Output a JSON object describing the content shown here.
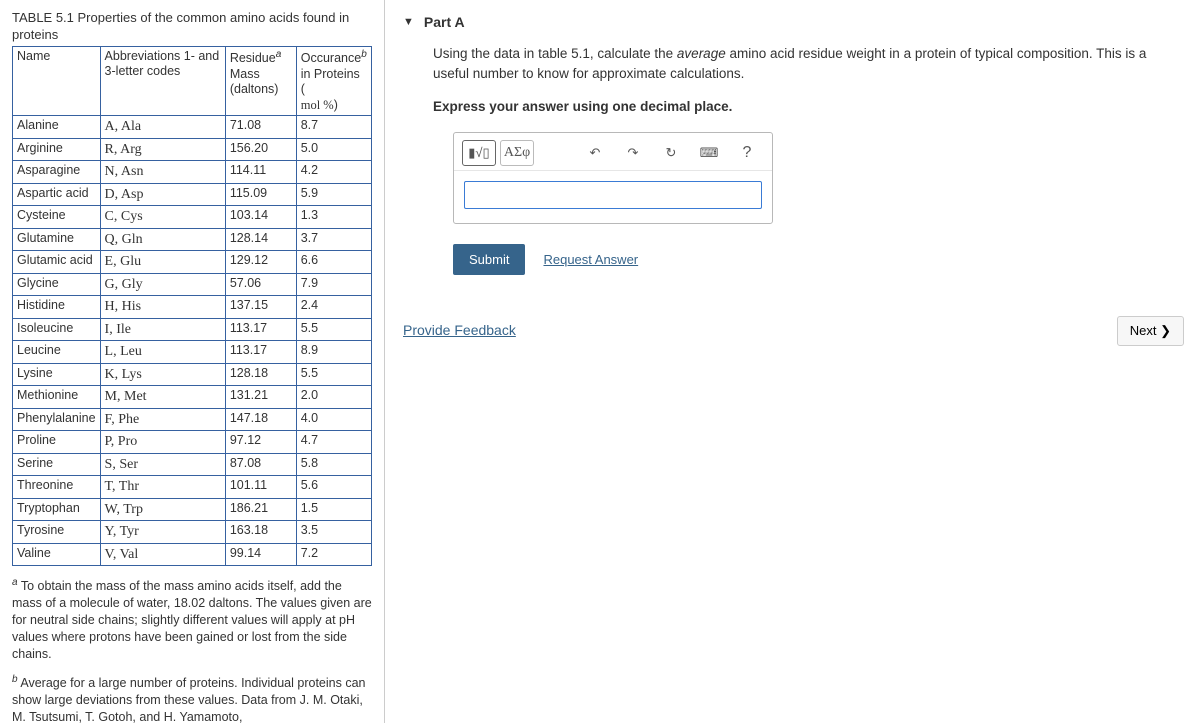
{
  "left": {
    "caption": "TABLE 5.1 Properties of the common amino acids found in proteins",
    "headers": {
      "c1": "Name",
      "c2": "Abbreviations 1- and 3-letter codes",
      "c3_l1": "Residue",
      "c3_sup": "a",
      "c3_l2": "Mass (daltons)",
      "c4_l1": "Occurance",
      "c4_sup": "b",
      "c4_l2": "in Proteins (",
      "c4_l3": "mol %",
      "c4_l4": ")"
    },
    "rows": [
      {
        "n": "Alanine",
        "a": "A,  Ala",
        "m": "71.08",
        "o": "8.7"
      },
      {
        "n": "Arginine",
        "a": "R,  Arg",
        "m": "156.20",
        "o": "5.0"
      },
      {
        "n": "Asparagine",
        "a": "N,  Asn",
        "m": "114.11",
        "o": "4.2"
      },
      {
        "n": "Aspartic acid",
        "a": "D,  Asp",
        "m": "115.09",
        "o": "5.9"
      },
      {
        "n": "Cysteine",
        "a": "C,  Cys",
        "m": "103.14",
        "o": "1.3"
      },
      {
        "n": "Glutamine",
        "a": "Q,  Gln",
        "m": "128.14",
        "o": "3.7"
      },
      {
        "n": "Glutamic acid",
        "a": "E,  Glu",
        "m": "129.12",
        "o": "6.6"
      },
      {
        "n": "Glycine",
        "a": "G,  Gly",
        "m": "57.06",
        "o": "7.9"
      },
      {
        "n": "Histidine",
        "a": "H,  His",
        "m": "137.15",
        "o": "2.4"
      },
      {
        "n": "Isoleucine",
        "a": "I,  Ile",
        "m": "113.17",
        "o": "5.5"
      },
      {
        "n": "Leucine",
        "a": "L,  Leu",
        "m": "113.17",
        "o": "8.9"
      },
      {
        "n": "Lysine",
        "a": "K,  Lys",
        "m": "128.18",
        "o": "5.5"
      },
      {
        "n": "Methionine",
        "a": "M,  Met",
        "m": "131.21",
        "o": "2.0"
      },
      {
        "n": "Phenylalanine",
        "a": "F,  Phe",
        "m": "147.18",
        "o": "4.0"
      },
      {
        "n": "Proline",
        "a": "P,  Pro",
        "m": "97.12",
        "o": "4.7"
      },
      {
        "n": "Serine",
        "a": "S,  Ser",
        "m": "87.08",
        "o": "5.8"
      },
      {
        "n": "Threonine",
        "a": "T,  Thr",
        "m": "101.11",
        "o": "5.6"
      },
      {
        "n": "Tryptophan",
        "a": "W,  Trp",
        "m": "186.21",
        "o": "1.5"
      },
      {
        "n": "Tyrosine",
        "a": "Y,  Tyr",
        "m": "163.18",
        "o": "3.5"
      },
      {
        "n": "Valine",
        "a": "V,  Val",
        "m": "99.14",
        "o": "7.2"
      }
    ],
    "footnote_a_sup": "a",
    "footnote_a": "To obtain the mass of the mass amino acids itself, add the mass of a molecule of water, 18.02 daltons. The values given are for neutral side chains; slightly different values will apply at pH values where protons have been gained or lost from the side chains.",
    "footnote_b_sup": "b",
    "footnote_b": "Average for a large number of proteins. Individual proteins can show large deviations from these values. Data from J. M. Otaki, M. Tsutsumi, T. Gotoh, and H. Yamamoto,"
  },
  "right": {
    "part_label": "Part A",
    "question_1": "Using the data in table 5.1, calculate the ",
    "question_em": "average",
    "question_2": " amino acid residue weight in a protein of typical composition. This is a useful number to know for approximate calculations.",
    "instruction": "Express your answer using one decimal place.",
    "toolbar": {
      "templates": "▮√▯",
      "symbols": "ΑΣφ",
      "undo": "↶",
      "redo": "↷",
      "reset": "↻",
      "keyboard": "⌨",
      "help": "?"
    },
    "answer_value": "",
    "submit": "Submit",
    "request": "Request Answer",
    "feedback": "Provide Feedback",
    "next": "Next ❯"
  },
  "style": {
    "border_color": "#3661a0",
    "button_color": "#36648b",
    "link_color": "#36648b",
    "input_border": "#3a7bd5",
    "font_size_base": 13
  }
}
